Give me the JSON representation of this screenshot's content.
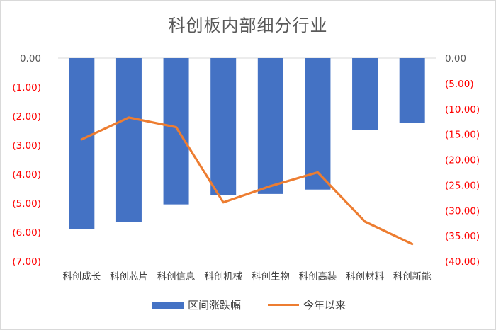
{
  "chart_data": {
    "type": "bar+line",
    "title": "科创板内部细分行业",
    "categories": [
      "科创成长",
      "科创芯片",
      "科创信息",
      "科创机械",
      "科创生物",
      "科创高装",
      "科创材料",
      "科创新能"
    ],
    "series": [
      {
        "name": "区间涨跌幅",
        "type": "bar",
        "axis": "left",
        "color": "#4472C4",
        "values": [
          -5.88,
          -5.65,
          -5.04,
          -4.72,
          -4.68,
          -4.53,
          -2.47,
          -2.22
        ]
      },
      {
        "name": "今年以来",
        "type": "line",
        "axis": "right",
        "color": "#ED7D31",
        "values": [
          -16.0,
          -11.7,
          -13.6,
          -28.4,
          -25.2,
          -22.5,
          -32.2,
          -36.6
        ]
      }
    ],
    "left_axis": {
      "ylim": [
        -7,
        0
      ],
      "ticks": [
        0,
        -1,
        -2,
        -3,
        -4,
        -5,
        -6,
        -7
      ],
      "tick_labels": [
        "0.00",
        "(1.00)",
        "(2.00)",
        "(3.00)",
        "(4.00)",
        "(5.00)",
        "(6.00)",
        "(7.00)"
      ],
      "zero_color": "#595959",
      "negative_color": "#FF0000"
    },
    "right_axis": {
      "ylim": [
        -40,
        0
      ],
      "ticks": [
        0,
        -5,
        -10,
        -15,
        -20,
        -25,
        -30,
        -35,
        -40
      ],
      "tick_labels": [
        "0.00",
        "(5.00)",
        "(10.00)",
        "(15.00)",
        "(20.00)",
        "(25.00)",
        "(30.00)",
        "(35.00)",
        "(40.00)"
      ],
      "zero_color": "#595959",
      "negative_color": "#FF0000"
    },
    "grid": false,
    "legend": "bottom"
  }
}
